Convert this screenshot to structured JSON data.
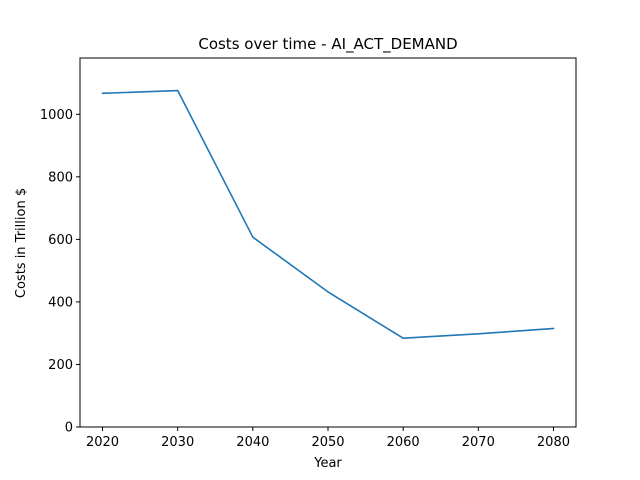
{
  "chart_data": {
    "type": "line",
    "title": "Costs over time - AI_ACT_DEMAND",
    "xlabel": "Year",
    "ylabel": "Costs in Trillion $",
    "x": [
      2020,
      2030,
      2040,
      2050,
      2060,
      2070,
      2080
    ],
    "series": [
      {
        "values": [
          1067,
          1076,
          607,
          432,
          284,
          298,
          315
        ],
        "color": "#1f77b4"
      }
    ],
    "xlim": [
      2017,
      2083
    ],
    "ylim": [
      0,
      1180
    ],
    "xticks": [
      2020,
      2030,
      2040,
      2050,
      2060,
      2070,
      2080
    ],
    "yticks": [
      0,
      200,
      400,
      600,
      800,
      1000
    ],
    "grid": false,
    "legend": "none"
  }
}
